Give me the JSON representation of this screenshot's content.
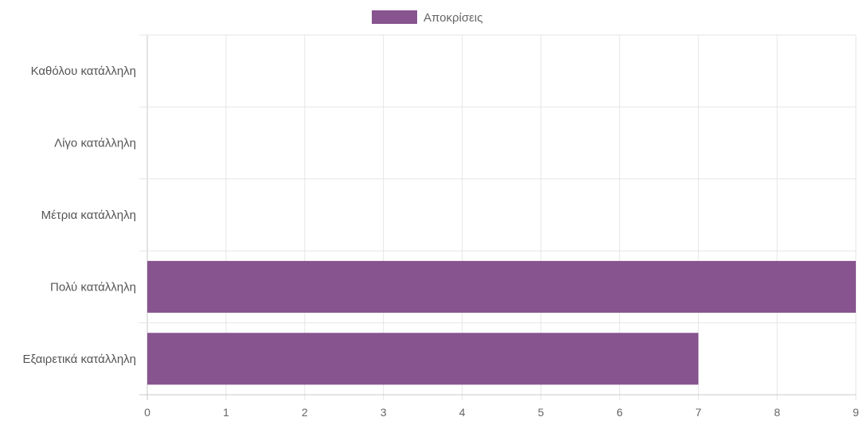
{
  "chart_data": {
    "type": "bar",
    "orientation": "horizontal",
    "categories": [
      "Καθόλου κατάλληλη",
      "Λίγο κατάλληλη",
      "Μέτρια κατάλληλη",
      "Πολύ κατάλληλη",
      "Εξαιρετικά κατάλληλη"
    ],
    "series": [
      {
        "name": "Αποκρίσεις",
        "values": [
          0,
          0,
          0,
          9,
          7
        ],
        "color": "#87548f"
      }
    ],
    "x_ticks": [
      "0",
      "1",
      "2",
      "3",
      "4",
      "5",
      "6",
      "7",
      "8",
      "9"
    ],
    "xlim": [
      0,
      9
    ],
    "grid": true,
    "legend_position": "top"
  }
}
